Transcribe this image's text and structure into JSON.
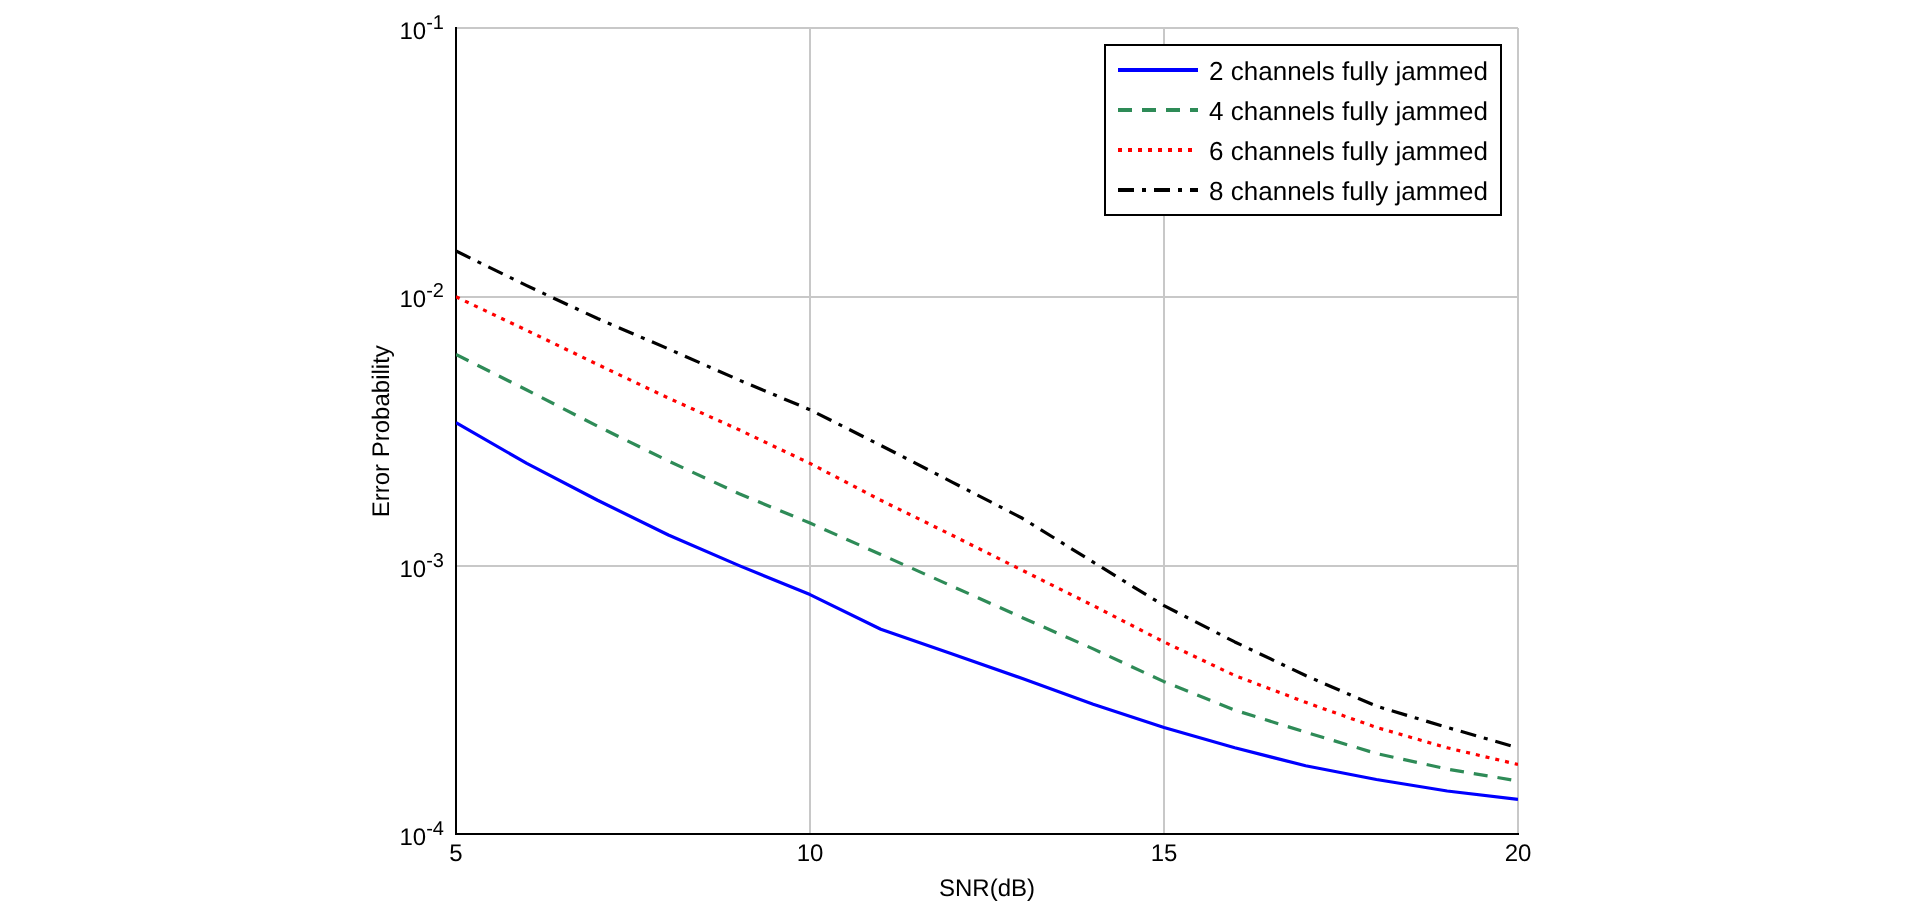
{
  "chart_data": {
    "type": "line",
    "xlabel": "SNR(dB)",
    "ylabel": "Error Probability",
    "log": "y",
    "x": [
      5,
      6,
      7,
      8,
      9,
      10,
      11,
      12,
      13,
      14,
      15,
      16,
      17,
      18,
      19,
      20
    ],
    "xlim": [
      5,
      20
    ],
    "xticks": [
      5,
      10,
      15,
      20
    ],
    "ylim": [
      0.0001,
      0.1
    ],
    "yticks": [
      {
        "value": 0.0001,
        "label": "10$^{-4}$"
      },
      {
        "value": 0.001,
        "label": "10$^{-3}$"
      },
      {
        "value": 0.01,
        "label": "10$^{-2}$"
      },
      {
        "value": 0.1,
        "label": "10$^{-1}$"
      }
    ],
    "grid": true,
    "legend": "top right",
    "marker": "none",
    "series": [
      {
        "name": "2 channels fully jammed",
        "color": "#0000ff",
        "line_style": "solid",
        "values": [
          0.0034,
          0.0024,
          0.00175,
          0.0013,
          0.001,
          0.00078,
          0.00058,
          0.00047,
          0.00038,
          0.000305,
          0.00025,
          0.00021,
          0.00018,
          0.00016,
          0.000145,
          0.000135
        ]
      },
      {
        "name": "4 channels fully jammed",
        "color": "#2e8b57",
        "line_style": "dashed",
        "values": [
          0.0061,
          0.0045,
          0.0033,
          0.00245,
          0.00185,
          0.00144,
          0.0011,
          0.00084,
          0.00064,
          0.00049,
          0.00037,
          0.00029,
          0.00024,
          0.0002,
          0.000175,
          0.000158
        ]
      },
      {
        "name": "6 channels fully jammed",
        "color": "#ff0000",
        "line_style": "dotted",
        "values": [
          0.01,
          0.0075,
          0.0056,
          0.0042,
          0.0032,
          0.0024,
          0.00175,
          0.0013,
          0.00096,
          0.00071,
          0.00052,
          0.00039,
          0.00031,
          0.00025,
          0.00021,
          0.000182
        ]
      },
      {
        "name": "8 channels fully jammed",
        "color": "#000000",
        "line_style": "dashdot",
        "values": [
          0.0148,
          0.011,
          0.0083,
          0.0064,
          0.0049,
          0.0038,
          0.0028,
          0.00205,
          0.0015,
          0.00103,
          0.00071,
          0.00052,
          0.00039,
          0.0003,
          0.00025,
          0.00021
        ]
      }
    ]
  }
}
